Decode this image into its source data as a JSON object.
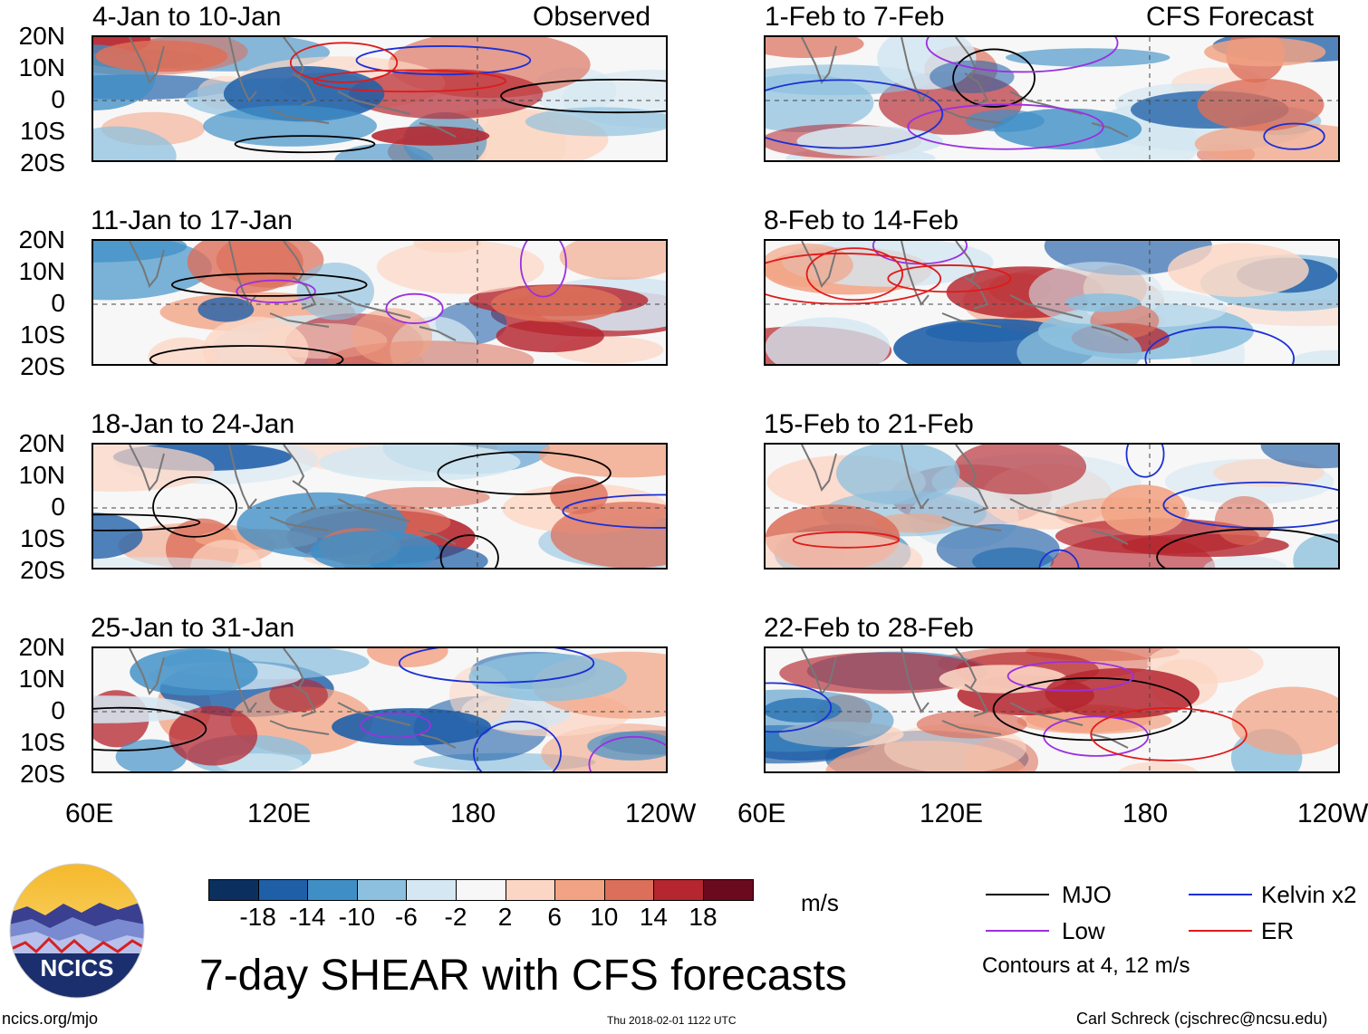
{
  "panels_left": [
    {
      "label": "4-Jan to 10-Jan",
      "tag": "Observed"
    },
    {
      "label": "11-Jan to 17-Jan",
      "tag": ""
    },
    {
      "label": "18-Jan to 24-Jan",
      "tag": ""
    },
    {
      "label": "25-Jan to 31-Jan",
      "tag": ""
    }
  ],
  "panels_right": [
    {
      "label": "1-Feb to 7-Feb",
      "tag": "CFS Forecast"
    },
    {
      "label": "8-Feb to 14-Feb",
      "tag": ""
    },
    {
      "label": "15-Feb to 21-Feb",
      "tag": ""
    },
    {
      "label": "22-Feb to 28-Feb",
      "tag": ""
    }
  ],
  "lat_labels": [
    "20N",
    "10N",
    "0",
    "10S",
    "20S"
  ],
  "lon_labels_left": [
    "60E",
    "120E",
    "180",
    "120W"
  ],
  "lon_labels_right": [
    "60E",
    "120E",
    "180",
    "120W"
  ],
  "colorbar": {
    "colors": [
      "#0b2f5e",
      "#1f5fa8",
      "#3f8fc6",
      "#8cc0de",
      "#d4e7f2",
      "#f7f7f7",
      "#fcd6c4",
      "#f2a384",
      "#dc6f5a",
      "#b5262f",
      "#6b0a1f"
    ],
    "labels": [
      "-18",
      "-14",
      "-10",
      "-6",
      "-2",
      "2",
      "6",
      "10",
      "14",
      "18"
    ],
    "units": "m/s"
  },
  "legend": {
    "items": [
      {
        "label": "MJO",
        "color": "#000000"
      },
      {
        "label": "Kelvin x2",
        "color": "#1a2fd6"
      },
      {
        "label": "Low",
        "color": "#9b30e0"
      },
      {
        "label": "ER",
        "color": "#e01a1a"
      }
    ],
    "note": "Contours at 4, 12 m/s"
  },
  "title": "7-day SHEAR with CFS forecasts",
  "logo_text": "NCICS",
  "footer": {
    "url": "ncics.org/mjo",
    "timestamp": "Thu 2018-02-01 1122 UTC",
    "credit": "Carl Schreck (cjschrec@ncsu.edu)"
  }
}
